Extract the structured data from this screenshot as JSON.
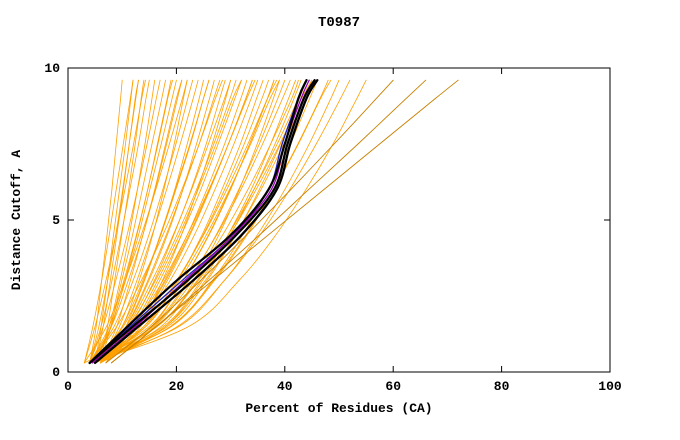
{
  "chart_data": {
    "type": "line",
    "title": "T0987",
    "xlabel": "Percent of Residues (CA)",
    "ylabel": "Distance Cutoff, A",
    "xlim": [
      0,
      100
    ],
    "ylim": [
      0,
      10
    ],
    "xticks": [
      0,
      20,
      40,
      60,
      80,
      100
    ],
    "yticks": [
      0,
      5,
      10
    ],
    "grid": false,
    "legend": "none",
    "y_grid": [
      0.3,
      1.5,
      3,
      4.5,
      6,
      7.5,
      9,
      9.6
    ],
    "series_colors": {
      "o": "#FFA000",
      "d": "#C88000",
      "b": "#2222BB",
      "p": "#9900BB",
      "k": "#000000"
    },
    "series_widths": {
      "o": 0.8,
      "d": 0.9,
      "b": 1.3,
      "p": 1.3,
      "k": 2.3
    },
    "series": [
      {
        "c": "o",
        "x": [
          4,
          5.2,
          6.2,
          7.2,
          8.1,
          8.9,
          9.7,
          10
        ]
      },
      {
        "c": "o",
        "x": [
          5,
          6.1,
          7.3,
          8.4,
          9.5,
          10.6,
          11.6,
          12
        ]
      },
      {
        "c": "o",
        "x": [
          4,
          5.7,
          7.3,
          8.8,
          10.1,
          11.3,
          12.5,
          13
        ]
      },
      {
        "c": "o",
        "x": [
          6,
          7.3,
          8.6,
          9.9,
          11.2,
          12.4,
          13.5,
          14
        ]
      },
      {
        "c": "o",
        "x": [
          4,
          6.1,
          8.1,
          9.8,
          11.4,
          13,
          14.4,
          15
        ]
      },
      {
        "c": "o",
        "x": [
          5,
          7.6,
          9.6,
          11.3,
          12.8,
          14.2,
          15.5,
          16
        ]
      },
      {
        "c": "o",
        "x": [
          4,
          6.5,
          8.8,
          10.9,
          12.8,
          14.6,
          16.3,
          17
        ]
      },
      {
        "c": "o",
        "x": [
          6,
          7.9,
          9.9,
          11.9,
          13.7,
          15.5,
          17.3,
          18
        ]
      },
      {
        "c": "o",
        "x": [
          4,
          7.6,
          10.3,
          12.6,
          14.7,
          16.5,
          18.3,
          19
        ]
      },
      {
        "c": "o",
        "x": [
          5,
          7.9,
          10.6,
          13,
          15.1,
          17.2,
          19.2,
          20
        ]
      },
      {
        "c": "o",
        "x": [
          4,
          8,
          11.1,
          13.8,
          16.1,
          18.2,
          20.2,
          21
        ]
      },
      {
        "c": "o",
        "x": [
          5,
          10,
          13.1,
          15.6,
          17.7,
          19.6,
          21.3,
          22
        ]
      },
      {
        "c": "o",
        "x": [
          4,
          8.5,
          12,
          14.9,
          17.5,
          19.9,
          22.1,
          23
        ]
      },
      {
        "c": "o",
        "x": [
          6,
          9.5,
          12.7,
          15.5,
          18.2,
          20.7,
          23.1,
          24
        ]
      },
      {
        "c": "o",
        "x": [
          4,
          10.2,
          14,
          17,
          19.7,
          22,
          24.2,
          25
        ]
      },
      {
        "c": "o",
        "x": [
          5,
          10,
          13.8,
          17.1,
          19.9,
          22.6,
          25,
          26
        ]
      },
      {
        "c": "o",
        "x": [
          4,
          10.7,
          14.9,
          18.3,
          21.2,
          23.7,
          26.1,
          27
        ]
      },
      {
        "c": "o",
        "x": [
          6,
          10.8,
          14.7,
          18.1,
          21.2,
          24.2,
          26.9,
          28
        ]
      },
      {
        "c": "o",
        "x": [
          4,
          11.3,
          15.9,
          19.5,
          22.7,
          25.5,
          28,
          29
        ]
      },
      {
        "c": "o",
        "x": [
          5,
          11,
          15.5,
          19.4,
          22.8,
          25.9,
          28.9,
          30
        ]
      },
      {
        "c": "o",
        "x": [
          4,
          11.1,
          16.1,
          20.1,
          23.7,
          26.9,
          29.9,
          31
        ]
      },
      {
        "c": "o",
        "x": [
          6,
          12.2,
          16.9,
          20.9,
          24.5,
          27.7,
          30.8,
          32
        ]
      },
      {
        "c": "o",
        "x": [
          4,
          12.5,
          17.8,
          22,
          25.6,
          28.9,
          31.9,
          33
        ]
      },
      {
        "c": "o",
        "x": [
          5,
          12.7,
          18,
          22.3,
          26.1,
          29.6,
          32.8,
          34
        ]
      },
      {
        "c": "o",
        "x": [
          4,
          13.1,
          18.8,
          23.3,
          27.1,
          30.6,
          33.8,
          35
        ]
      },
      {
        "c": "o",
        "x": [
          4,
          14.4,
          20.2,
          24.7,
          28.4,
          31.8,
          34.8,
          36
        ]
      },
      {
        "c": "o",
        "x": [
          5,
          14.4,
          20.2,
          24.9,
          28.9,
          32.5,
          35.8,
          37
        ]
      },
      {
        "c": "o",
        "x": [
          4,
          15,
          21.2,
          26,
          30,
          33.5,
          36.8,
          38
        ]
      },
      {
        "c": "o",
        "x": [
          5,
          17.2,
          23.3,
          27.8,
          31.6,
          34.9,
          37.9,
          39
        ]
      },
      {
        "c": "o",
        "x": [
          4,
          15.7,
          22.3,
          27.3,
          31.5,
          35.3,
          38.7,
          40
        ]
      },
      {
        "c": "o",
        "x": [
          5,
          15.5,
          22.1,
          27.4,
          31.9,
          35.9,
          39.6,
          41
        ]
      },
      {
        "c": "o",
        "x": [
          4,
          17.6,
          24.5,
          29.5,
          33.8,
          37.4,
          40.7,
          42
        ]
      },
      {
        "c": "o",
        "x": [
          6,
          18,
          24.8,
          29.9,
          34.3,
          38.2,
          41.7,
          43
        ]
      },
      {
        "c": "o",
        "x": [
          4,
          18.4,
          25.6,
          30.9,
          35.3,
          39.2,
          42.7,
          44
        ]
      },
      {
        "c": "o",
        "x": [
          5,
          18,
          25.3,
          30.8,
          35.6,
          39.8,
          43.6,
          45
        ]
      },
      {
        "c": "o",
        "x": [
          4,
          19.1,
          26.6,
          32.2,
          36.9,
          41,
          44.6,
          46
        ]
      },
      {
        "c": "o",
        "x": [
          5,
          18.9,
          26.8,
          32.8,
          37.9,
          42.4,
          46.5,
          48
        ]
      },
      {
        "c": "o",
        "x": [
          4,
          20.5,
          28.8,
          34.9,
          40,
          44.5,
          48.5,
          50
        ]
      },
      {
        "c": "o",
        "x": [
          5,
          20.2,
          28.8,
          35.4,
          40.9,
          45.8,
          50.3,
          52
        ]
      },
      {
        "c": "o",
        "x": [
          4,
          22.3,
          31.5,
          38.3,
          43.9,
          48.9,
          53.3,
          55
        ]
      },
      {
        "c": "o",
        "x": [
          7,
          10.7,
          14.1,
          17.1,
          19.8,
          22.5,
          25,
          26
        ]
      },
      {
        "c": "o",
        "x": [
          6,
          13,
          17.4,
          20.9,
          23.9,
          26.6,
          29.1,
          30
        ]
      },
      {
        "c": "o",
        "x": [
          7,
          13.4,
          18.3,
          22.5,
          26.2,
          29.6,
          32.8,
          34
        ]
      },
      {
        "c": "o",
        "x": [
          6,
          15.4,
          21.2,
          25.9,
          29.9,
          33.5,
          36.8,
          38
        ]
      },
      {
        "c": "o",
        "x": [
          3,
          4.6,
          6.2,
          7.6,
          8.9,
          10.2,
          11.5,
          12
        ]
      },
      {
        "c": "o",
        "x": [
          3,
          7.1,
          10.5,
          13.5,
          16.2,
          18.7,
          21.1,
          22
        ]
      },
      {
        "c": "o",
        "x": [
          3,
          16.3,
          23.8,
          29.5,
          34.3,
          38.6,
          42.5,
          44
        ]
      },
      {
        "c": "o",
        "x": [
          5,
          6.5,
          7.8,
          9,
          10.2,
          11.3,
          12.4,
          13
        ]
      },
      {
        "c": "o",
        "x": [
          6,
          9,
          11.5,
          13.8,
          16,
          18,
          20,
          21
        ]
      },
      {
        "c": "o",
        "x": [
          4,
          9,
          13.5,
          17.5,
          21,
          24.2,
          27.2,
          28.5
        ]
      },
      {
        "c": "o",
        "x": [
          5,
          12,
          17.5,
          22,
          26,
          29.6,
          33,
          34.5
        ]
      },
      {
        "c": "o",
        "x": [
          4,
          14,
          20.5,
          25.5,
          29.8,
          33.7,
          37.3,
          39
        ]
      },
      {
        "c": "o",
        "x": [
          6,
          16,
          23,
          28.5,
          33.2,
          37.4,
          41.3,
          42.5
        ]
      },
      {
        "c": "o",
        "x": [
          7,
          12,
          16.5,
          20.5,
          24,
          27.3,
          30.4,
          32
        ]
      },
      {
        "c": "o",
        "x": [
          6,
          14,
          20,
          25,
          29.3,
          33.2,
          36.8,
          38.5
        ]
      },
      {
        "c": "o",
        "x": [
          4,
          16.5,
          24,
          29.8,
          34.7,
          39.1,
          43.1,
          45
        ]
      },
      {
        "c": "o",
        "x": [
          4,
          19,
          27,
          33,
          38,
          42.5,
          46.6,
          48.5
        ]
      },
      {
        "c": "o",
        "x": [
          3,
          5,
          7,
          8.8,
          10.5,
          12.1,
          13.6,
          14.3
        ]
      },
      {
        "c": "o",
        "x": [
          5,
          8,
          10.5,
          12.7,
          14.7,
          16.6,
          18.4,
          19.3
        ]
      },
      {
        "c": "d",
        "x": [
          7,
          15.4,
          24.4,
          32.9,
          41.1,
          49.1,
          56.9,
          60
        ]
      },
      {
        "c": "d",
        "x": [
          8,
          16.3,
          25.9,
          35.3,
          44.4,
          53.5,
          62.4,
          66
        ]
      },
      {
        "c": "d",
        "x": [
          8,
          16.3,
          26.6,
          36.9,
          47.2,
          57.5,
          67.8,
          72
        ]
      },
      {
        "c": "b",
        "x": [
          4,
          11.5,
          21,
          30.5,
          37,
          39.5,
          42.5,
          44
        ]
      },
      {
        "c": "p",
        "x": [
          4.5,
          12.5,
          21.5,
          30.5,
          37.5,
          40,
          43,
          44.5
        ]
      },
      {
        "c": "k",
        "x": [
          4,
          11,
          20,
          30,
          37,
          40,
          42.5,
          44
        ]
      },
      {
        "c": "k",
        "x": [
          4,
          12,
          22,
          31,
          38,
          40.5,
          43.5,
          45.5
        ]
      },
      {
        "c": "k",
        "x": [
          5,
          13,
          23,
          32,
          38.5,
          41,
          44,
          46
        ]
      }
    ]
  }
}
